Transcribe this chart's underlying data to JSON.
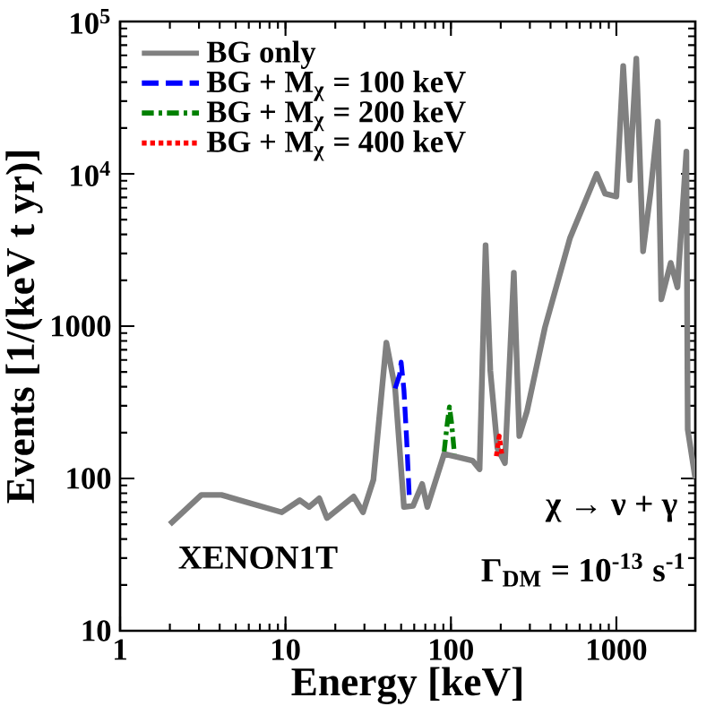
{
  "chart_data": {
    "type": "line",
    "xlabel": "Energy [keV]",
    "ylabel": "Events [1/(keV  t  yr)]",
    "xlim": [
      1,
      3000
    ],
    "ylim": [
      10,
      100000
    ],
    "log": "xy",
    "xticks": [
      1,
      10,
      100,
      1000
    ],
    "yticks": [
      10,
      100,
      1000,
      {
        "value": 10000,
        "label": "10$^{4}$"
      },
      {
        "value": 100000,
        "label": "10$^{5}$"
      }
    ],
    "legend": "top left",
    "grid": false,
    "marker": "none",
    "annotations": [
      "XENON1T",
      "χ → ν + γ",
      "Γ$_{DM}$ = 10$^{-13}$ s$^{-1}$"
    ],
    "series": [
      {
        "name": "BG only",
        "color": "#808080",
        "line_style": "solid",
        "x": [
          2,
          3.1,
          4.1,
          9.5,
          12.2,
          13.9,
          16,
          17.8,
          25.8,
          29.4,
          34,
          40.7,
          46,
          52,
          59,
          67,
          72,
          91,
          135,
          149,
          162,
          173,
          191,
          212,
          240,
          259,
          288,
          370,
          525,
          760,
          855,
          1000,
          1100,
          1200,
          1320,
          1450,
          1610,
          1780,
          1870,
          2130,
          2340,
          2650,
          2700,
          3000
        ],
        "values": [
          50,
          78,
          78,
          60,
          72,
          65,
          74,
          55,
          76,
          60,
          98,
          780,
          390,
          65,
          66,
          92,
          65,
          145,
          131,
          115,
          3400,
          510,
          158,
          126,
          2240,
          190,
          275,
          980,
          3800,
          10000,
          7400,
          7100,
          51000,
          9100,
          57000,
          3100,
          7600,
          22000,
          1500,
          2600,
          1800,
          14000,
          210,
          100
        ]
      },
      {
        "name": "BG +  M$_{χ}$ = 100 keV",
        "color": "#0000ff",
        "line_style": "dashed",
        "x": [
          46,
          49,
          50,
          52,
          54,
          56
        ],
        "values": [
          390,
          480,
          580,
          380,
          180,
          76
        ]
      },
      {
        "name": "BG +  M$_{χ}$ = 200 keV",
        "color": "#008000",
        "line_style": "dashdot",
        "x": [
          91,
          95,
          98,
          101,
          105
        ],
        "values": [
          150,
          230,
          295,
          230,
          145
        ]
      },
      {
        "name": "BG +  M$_{χ}$ = 400 keV",
        "color": "#ff0000",
        "line_style": "dotted",
        "x": [
          188,
          196,
          204
        ],
        "values": [
          140,
          190,
          140
        ]
      }
    ]
  }
}
